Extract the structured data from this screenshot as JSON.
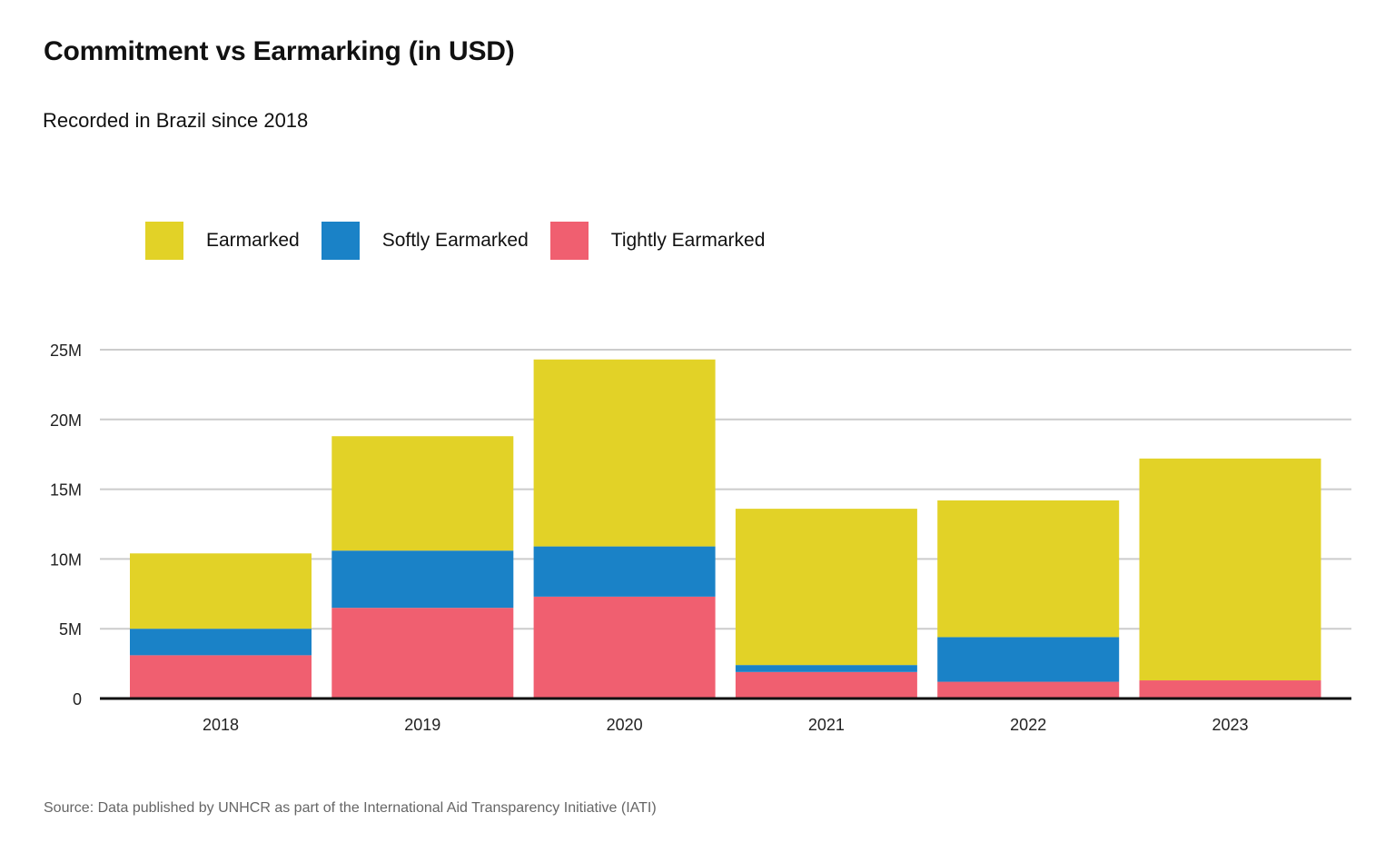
{
  "header": {
    "title": "Commitment  vs Earmarking  (in USD)",
    "subtitle": "Recorded in Brazil since 2018"
  },
  "footer": {
    "source": "Source: Data published by UNHCR as part of the International  Aid Transparency Initiative (IATI)"
  },
  "chart_data": {
    "type": "bar",
    "stacked": true,
    "title": "Commitment  vs Earmarking  (in USD)",
    "subtitle": "Recorded in Brazil since 2018",
    "xlabel": "",
    "ylabel": "",
    "categories": [
      "2018",
      "2019",
      "2020",
      "2021",
      "2022",
      "2023"
    ],
    "series": [
      {
        "name": "Tightly Earmarked",
        "color": "#f05f70",
        "values": [
          3.1,
          6.5,
          7.3,
          1.9,
          1.2,
          1.3
        ]
      },
      {
        "name": "Softly Earmarked",
        "color": "#1a82c7",
        "values": [
          1.9,
          4.1,
          3.6,
          0.5,
          3.2,
          0.0
        ]
      },
      {
        "name": "Earmarked",
        "color": "#e2d227",
        "values": [
          5.4,
          8.2,
          13.4,
          11.2,
          9.8,
          15.9
        ]
      }
    ],
    "legend_order": [
      "Earmarked",
      "Softly Earmarked",
      "Tightly Earmarked"
    ],
    "legend_position": "top-left",
    "ylim": [
      0,
      25
    ],
    "yticks": [
      0,
      5,
      10,
      15,
      20,
      25
    ],
    "ytick_labels": [
      "0",
      "5M",
      "10M",
      "15M",
      "20M",
      "25M"
    ],
    "grid": true,
    "units": "M USD"
  }
}
